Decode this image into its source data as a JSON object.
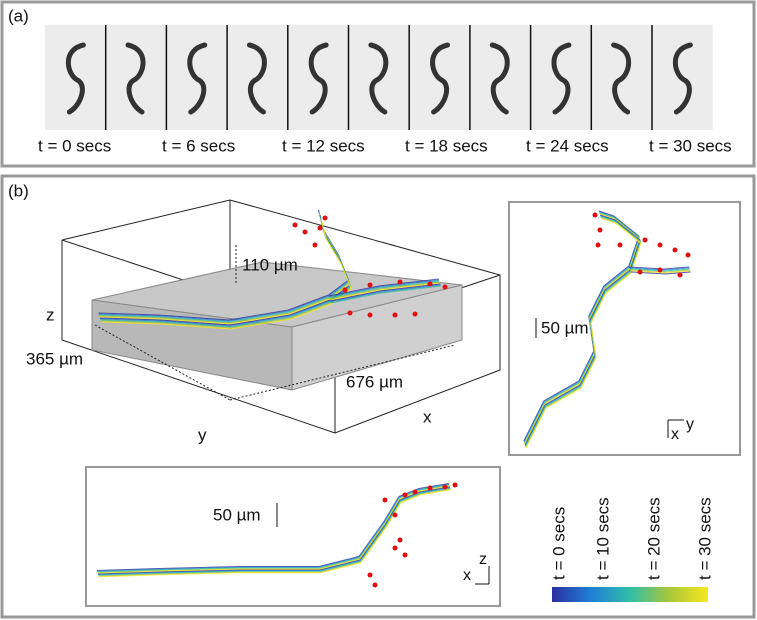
{
  "panel_a": {
    "label": "(a)",
    "times": [
      "t = 0 secs",
      "t = 6 secs",
      "t = 12 secs",
      "t = 18 secs",
      "t = 24 secs",
      "t = 30 secs"
    ]
  },
  "panel_b": {
    "label": "(b)",
    "view_3d": {
      "z_axis": "z",
      "height": "110 µm",
      "width": "365 µm",
      "length": "676 µm",
      "y_axis": "y",
      "x_axis": "x"
    },
    "view_top": {
      "scale": "50 µm",
      "x_axis": "x",
      "y_axis": "y"
    },
    "view_side": {
      "scale": "50 µm",
      "z_axis": "z",
      "x_axis": "x"
    },
    "colorbar": {
      "labels": [
        "t = 0 secs",
        "t = 10 secs",
        "t = 20 secs",
        "t = 30 secs"
      ]
    }
  }
}
